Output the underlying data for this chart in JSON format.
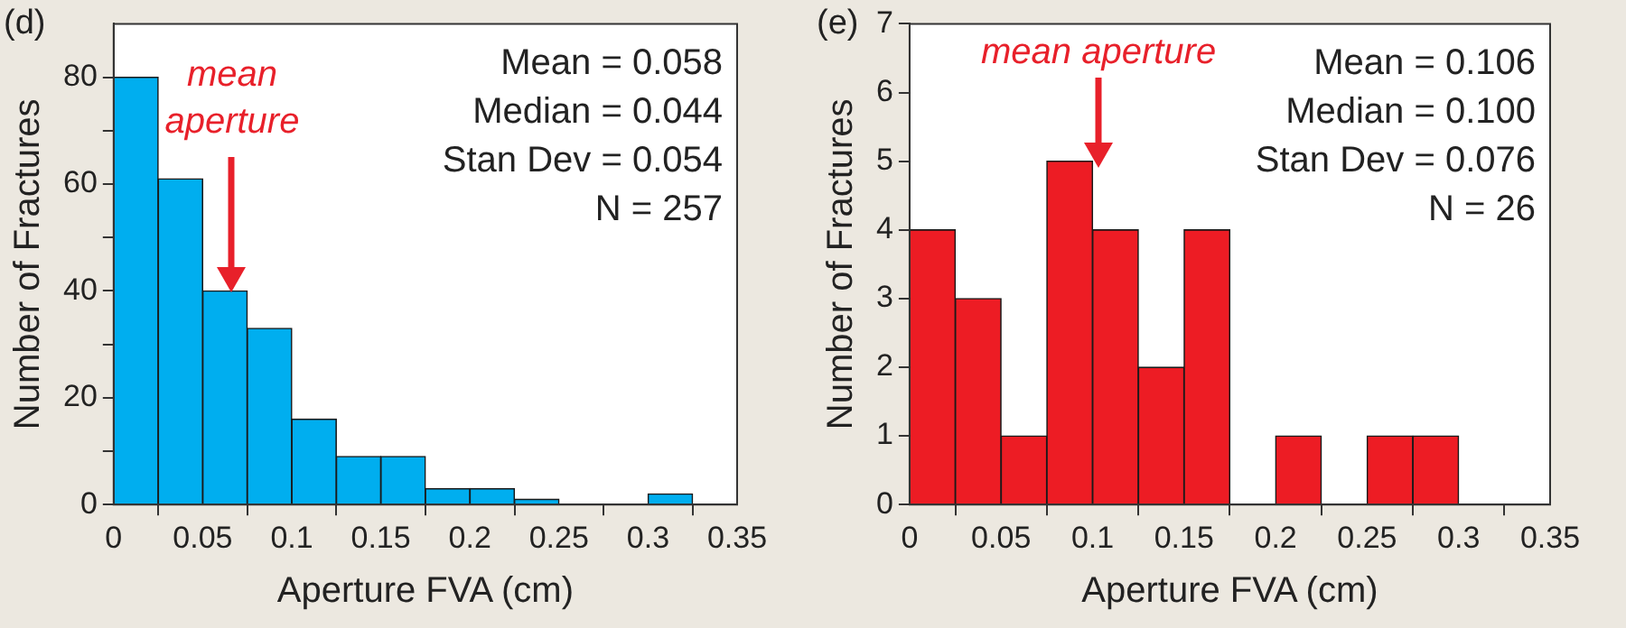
{
  "chart_data": [
    {
      "type": "histogram",
      "title": "(d)",
      "xlabel": "Aperture FVA (cm)",
      "ylabel": "Number of Fractures",
      "color": "#00aeef",
      "bins": [
        0,
        0.025,
        0.05,
        0.075,
        0.1,
        0.125,
        0.15,
        0.175,
        0.2,
        0.225,
        0.25,
        0.275,
        0.3,
        0.325
      ],
      "values": [
        80,
        61,
        40,
        33,
        16,
        9,
        9,
        3,
        3,
        1,
        0,
        0,
        2
      ],
      "xlim": [
        0,
        0.35
      ],
      "xticks": [
        0,
        0.05,
        0.1,
        0.15,
        0.2,
        0.25,
        0.3,
        0.35
      ],
      "ylim": [
        0,
        90
      ],
      "yticks": [
        0,
        {
          "value": 10,
          "label": null
        },
        20,
        {
          "value": 30,
          "label": null
        },
        40,
        {
          "value": 50,
          "label": null
        },
        60,
        {
          "value": 70,
          "label": null
        },
        80
      ],
      "grid": false,
      "legend": false,
      "annotations": [
        "Mean = 0.058",
        "Median = 0.044",
        "Stan Dev = 0.054",
        "N = 257",
        "mean aperture"
      ]
    },
    {
      "type": "histogram",
      "title": "(e)",
      "xlabel": "Aperture FVA (cm)",
      "ylabel": "Number of Fractures",
      "color": "#ed1c24",
      "bins": [
        0,
        0.025,
        0.05,
        0.075,
        0.1,
        0.125,
        0.15,
        0.175,
        0.2,
        0.225,
        0.25,
        0.275,
        0.3
      ],
      "values": [
        4,
        3,
        1,
        5,
        4,
        2,
        4,
        0,
        1,
        0,
        1,
        1
      ],
      "xlim": [
        0,
        0.35
      ],
      "xticks": [
        0,
        0.05,
        0.1,
        0.15,
        0.2,
        0.25,
        0.3,
        0.35
      ],
      "ylim": [
        0,
        7
      ],
      "yticks": [
        0,
        1,
        2,
        3,
        4,
        5,
        6,
        7
      ],
      "grid": false,
      "legend": false,
      "annotations": [
        "Mean = 0.106",
        "Median = 0.100",
        "Stan Dev = 0.076",
        "N = 26",
        "mean aperture"
      ]
    }
  ]
}
